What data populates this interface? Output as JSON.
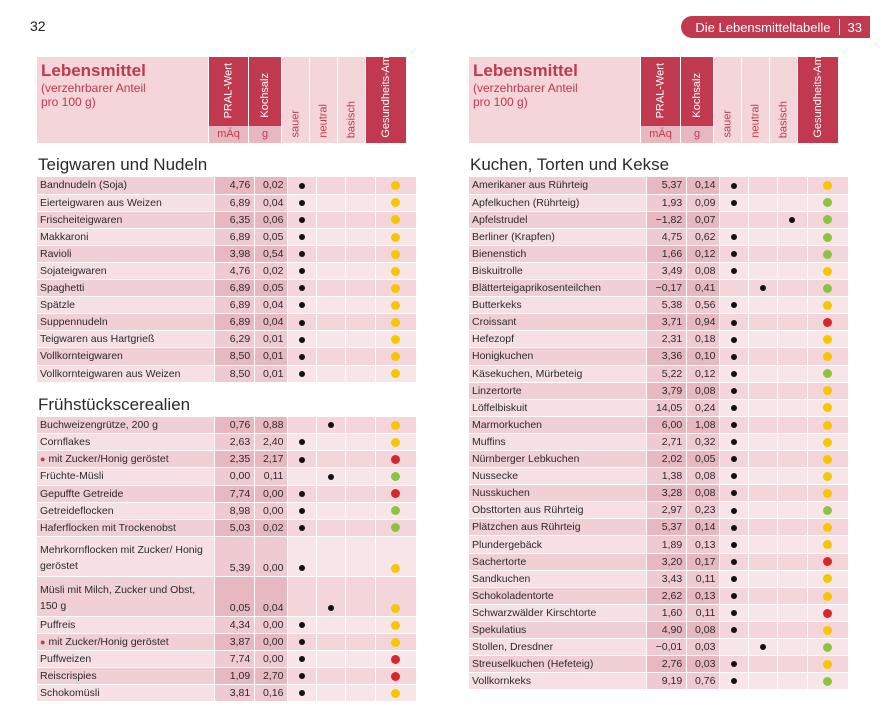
{
  "left_page_number": "32",
  "right_header": {
    "title": "Die Lebensmitteltabelle",
    "page_number": "33"
  },
  "colors": {
    "green": "#8bc53f",
    "yellow": "#f6c600",
    "red": "#d9262c",
    "accent": "#c0394e"
  },
  "column_header": {
    "title": "Lebensmittel",
    "subtitle_line1": "(verzehrbarer Anteil",
    "subtitle_line2": "pro 100 g)",
    "pral": "PRAL-Wert",
    "pral_unit": "mÄq",
    "salt": "Kochsalz",
    "salt_unit": "g",
    "sauer": "sauer",
    "neutral": "neutral",
    "basisch": "basisch",
    "ampel_line1": "Gesundheits-",
    "ampel_line2": "Ampel"
  },
  "left_sections": [
    {
      "title": "Teigwaren und Nudeln",
      "rows": [
        {
          "name": "Bandnudeln (Soja)",
          "pral": "4,76",
          "salt": "0,02",
          "acid": "sauer",
          "ampel": "yellow"
        },
        {
          "name": "Eierteigwaren aus Weizen",
          "pral": "6,89",
          "salt": "0,04",
          "acid": "sauer",
          "ampel": "yellow"
        },
        {
          "name": "Frischeiteigwaren",
          "pral": "6,35",
          "salt": "0,06",
          "acid": "sauer",
          "ampel": "yellow"
        },
        {
          "name": "Makkaroni",
          "pral": "6,89",
          "salt": "0,05",
          "acid": "sauer",
          "ampel": "yellow"
        },
        {
          "name": "Ravioli",
          "pral": "3,98",
          "salt": "0,54",
          "acid": "sauer",
          "ampel": "yellow"
        },
        {
          "name": "Sojateigwaren",
          "pral": "4,76",
          "salt": "0,02",
          "acid": "sauer",
          "ampel": "yellow"
        },
        {
          "name": "Spaghetti",
          "pral": "6,89",
          "salt": "0,05",
          "acid": "sauer",
          "ampel": "yellow"
        },
        {
          "name": "Spätzle",
          "pral": "6,89",
          "salt": "0,04",
          "acid": "sauer",
          "ampel": "yellow"
        },
        {
          "name": "Suppennudeln",
          "pral": "6,89",
          "salt": "0,04",
          "acid": "sauer",
          "ampel": "yellow"
        },
        {
          "name": "Teigwaren aus Hartgrieß",
          "pral": "6,29",
          "salt": "0,01",
          "acid": "sauer",
          "ampel": "yellow"
        },
        {
          "name": "Vollkornteigwaren",
          "pral": "8,50",
          "salt": "0,01",
          "acid": "sauer",
          "ampel": "yellow"
        },
        {
          "name": "Vollkornteigwaren aus Weizen",
          "pral": "8,50",
          "salt": "0,01",
          "acid": "sauer",
          "ampel": "yellow"
        }
      ]
    },
    {
      "title": "Frühstückscerealien",
      "rows": [
        {
          "name": "Buchweizengrütze, 200 g",
          "pral": "0,76",
          "salt": "0,88",
          "acid": "neutral",
          "ampel": "yellow"
        },
        {
          "name": "Cornflakes",
          "pral": "2,63",
          "salt": "2,40",
          "acid": "sauer",
          "ampel": "yellow"
        },
        {
          "name": "mit Zucker/Honig geröstet",
          "bullet": true,
          "pral": "2,35",
          "salt": "2,17",
          "acid": "sauer",
          "ampel": "red"
        },
        {
          "name": "Früchte-Müsli",
          "pral": "0,00",
          "salt": "0,11",
          "acid": "neutral",
          "ampel": "green"
        },
        {
          "name": "Gepuffte Getreide",
          "pral": "7,74",
          "salt": "0,00",
          "acid": "sauer",
          "ampel": "red"
        },
        {
          "name": "Getreideflocken",
          "pral": "8,98",
          "salt": "0,00",
          "acid": "sauer",
          "ampel": "green"
        },
        {
          "name": "Haferflocken mit Trockenobst",
          "pral": "5,03",
          "salt": "0,02",
          "acid": "sauer",
          "ampel": "green"
        },
        {
          "name": "Mehrkornflocken mit Zucker/ Honig geröstet",
          "tall": true,
          "pral": "5,39",
          "salt": "0,00",
          "acid": "sauer",
          "ampel": "yellow"
        },
        {
          "name": "Müsli mit Milch, Zucker und Obst, 150 g",
          "tall": true,
          "pral": "0,05",
          "salt": "0,04",
          "acid": "neutral",
          "ampel": "yellow"
        },
        {
          "name": "Puffreis",
          "pral": "4,34",
          "salt": "0,00",
          "acid": "sauer",
          "ampel": "yellow"
        },
        {
          "name": "mit Zucker/Honig geröstet",
          "bullet": true,
          "pral": "3,87",
          "salt": "0,00",
          "acid": "sauer",
          "ampel": "yellow"
        },
        {
          "name": "Puffweizen",
          "pral": "7,74",
          "salt": "0,00",
          "acid": "sauer",
          "ampel": "red"
        },
        {
          "name": "Reiscrispies",
          "pral": "1,09",
          "salt": "2,70",
          "acid": "sauer",
          "ampel": "red"
        },
        {
          "name": "Schokomüsli",
          "pral": "3,81",
          "salt": "0,16",
          "acid": "sauer",
          "ampel": "yellow"
        }
      ]
    }
  ],
  "right_sections": [
    {
      "title": "Kuchen, Torten und Kekse",
      "rows": [
        {
          "name": "Amerikaner aus Rührteig",
          "pral": "5,37",
          "salt": "0,14",
          "acid": "sauer",
          "ampel": "yellow"
        },
        {
          "name": "Apfelkuchen (Rührteig)",
          "pral": "1,93",
          "salt": "0,09",
          "acid": "sauer",
          "ampel": "green"
        },
        {
          "name": "Apfelstrudel",
          "pral": "−1,82",
          "salt": "0,07",
          "acid": "basisch",
          "ampel": "green"
        },
        {
          "name": "Berliner (Krapfen)",
          "pral": "4,75",
          "salt": "0,62",
          "acid": "sauer",
          "ampel": "green"
        },
        {
          "name": "Bienenstich",
          "pral": "1,66",
          "salt": "0,12",
          "acid": "sauer",
          "ampel": "green"
        },
        {
          "name": "Biskuitrolle",
          "pral": "3,49",
          "salt": "0,08",
          "acid": "sauer",
          "ampel": "yellow"
        },
        {
          "name": "Blätterteigaprikosenteilchen",
          "pral": "−0,17",
          "salt": "0,41",
          "acid": "neutral",
          "ampel": "green"
        },
        {
          "name": "Butterkeks",
          "pral": "5,38",
          "salt": "0,56",
          "acid": "sauer",
          "ampel": "yellow"
        },
        {
          "name": "Croissant",
          "pral": "3,71",
          "salt": "0,94",
          "acid": "sauer",
          "ampel": "red"
        },
        {
          "name": "Hefezopf",
          "pral": "2,31",
          "salt": "0,18",
          "acid": "sauer",
          "ampel": "yellow"
        },
        {
          "name": "Honigkuchen",
          "pral": "3,36",
          "salt": "0,10",
          "acid": "sauer",
          "ampel": "yellow"
        },
        {
          "name": "Käsekuchen, Mürbeteig",
          "pral": "5,22",
          "salt": "0,12",
          "acid": "sauer",
          "ampel": "green"
        },
        {
          "name": "Linzertorte",
          "pral": "3,79",
          "salt": "0,08",
          "acid": "sauer",
          "ampel": "yellow"
        },
        {
          "name": "Löffelbiskuit",
          "pral": "14,05",
          "salt": "0,24",
          "acid": "sauer",
          "ampel": "yellow"
        },
        {
          "name": "Marmorkuchen",
          "pral": "6,00",
          "salt": "1,08",
          "acid": "sauer",
          "ampel": "yellow"
        },
        {
          "name": "Muffins",
          "pral": "2,71",
          "salt": "0,32",
          "acid": "sauer",
          "ampel": "yellow"
        },
        {
          "name": "Nürnberger Lebkuchen",
          "pral": "2,02",
          "salt": "0,05",
          "acid": "sauer",
          "ampel": "yellow"
        },
        {
          "name": "Nussecke",
          "pral": "1,38",
          "salt": "0,08",
          "acid": "sauer",
          "ampel": "yellow"
        },
        {
          "name": "Nusskuchen",
          "pral": "3,28",
          "salt": "0,08",
          "acid": "sauer",
          "ampel": "yellow"
        },
        {
          "name": "Obsttorten aus Rührteig",
          "pral": "2,97",
          "salt": "0,23",
          "acid": "sauer",
          "ampel": "green"
        },
        {
          "name": "Plätzchen aus Rührteig",
          "pral": "5,37",
          "salt": "0,14",
          "acid": "sauer",
          "ampel": "yellow"
        },
        {
          "name": "Plundergebäck",
          "pral": "1,89",
          "salt": "0,13",
          "acid": "sauer",
          "ampel": "yellow"
        },
        {
          "name": "Sachertorte",
          "pral": "3,20",
          "salt": "0,17",
          "acid": "sauer",
          "ampel": "red"
        },
        {
          "name": "Sandkuchen",
          "pral": "3,43",
          "salt": "0,11",
          "acid": "sauer",
          "ampel": "yellow"
        },
        {
          "name": "Schokoladentorte",
          "pral": "2,62",
          "salt": "0,13",
          "acid": "sauer",
          "ampel": "yellow"
        },
        {
          "name": "Schwarzwälder Kirschtorte",
          "pral": "1,60",
          "salt": "0,11",
          "acid": "sauer",
          "ampel": "red"
        },
        {
          "name": "Spekulatius",
          "pral": "4,90",
          "salt": "0,08",
          "acid": "sauer",
          "ampel": "yellow"
        },
        {
          "name": "Stollen, Dresdner",
          "pral": "−0,01",
          "salt": "0,03",
          "acid": "neutral",
          "ampel": "green"
        },
        {
          "name": "Streuselkuchen (Hefeteig)",
          "pral": "2,76",
          "salt": "0,03",
          "acid": "sauer",
          "ampel": "yellow"
        },
        {
          "name": "Vollkornkeks",
          "pral": "9,19",
          "salt": "0,76",
          "acid": "sauer",
          "ampel": "green"
        }
      ]
    }
  ]
}
